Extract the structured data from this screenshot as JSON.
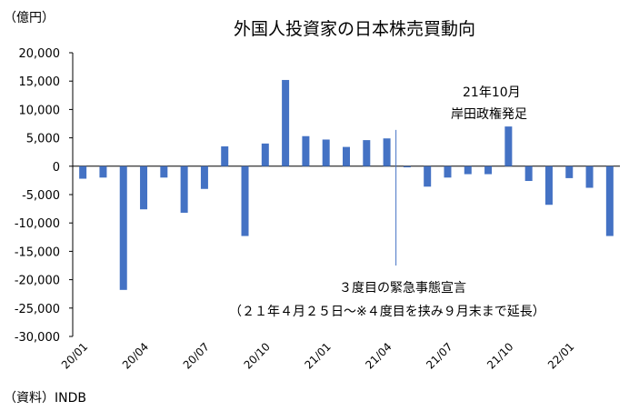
{
  "chart_data": {
    "type": "bar",
    "title": "外国人投資家の日本株売買動向",
    "unit_label": "（億円）",
    "source": "（資料）INDB",
    "ylim": [
      -30000,
      20000
    ],
    "y_ticks": [
      "20,000",
      "15,000",
      "10,000",
      "5,000",
      "0",
      "-5,000",
      "-10,000",
      "-15,000",
      "-20,000",
      "-25,000",
      "-30,000"
    ],
    "y_tick_values": [
      20000,
      15000,
      10000,
      5000,
      0,
      -5000,
      -10000,
      -15000,
      -20000,
      -25000,
      -30000
    ],
    "x_tick_labels": [
      {
        "label": "20/01",
        "index": 0
      },
      {
        "label": "20/04",
        "index": 3
      },
      {
        "label": "20/07",
        "index": 6
      },
      {
        "label": "20/10",
        "index": 9
      },
      {
        "label": "21/01",
        "index": 12
      },
      {
        "label": "21/04",
        "index": 15
      },
      {
        "label": "21/07",
        "index": 18
      },
      {
        "label": "21/10",
        "index": 21
      },
      {
        "label": "22/01",
        "index": 24
      }
    ],
    "categories": [
      "20/01",
      "20/02",
      "20/03",
      "20/04",
      "20/05",
      "20/06",
      "20/07",
      "20/08",
      "20/09",
      "20/10",
      "20/11",
      "20/12",
      "21/01",
      "21/02",
      "21/03",
      "21/04",
      "21/05",
      "21/06",
      "21/07",
      "21/08",
      "21/09",
      "21/10",
      "21/11",
      "21/12",
      "22/01",
      "22/02",
      "22/03"
    ],
    "values": [
      -2200,
      -2000,
      -21800,
      -7600,
      -2000,
      -8200,
      -4000,
      3500,
      -12300,
      4000,
      15200,
      5300,
      4700,
      3400,
      4600,
      4900,
      -200,
      -3600,
      -2000,
      -1400,
      -1400,
      7000,
      -2600,
      -6800,
      -2100,
      -3800,
      -12300
    ],
    "bar_color": "#4472c4",
    "annotations": {
      "emergency_title": "３度目の緊急事態宣言",
      "emergency_detail": "（２１年４月２５日～※４度目を挟み９月末まで延長）",
      "kishida_date": "21年10月",
      "kishida_label": "岸田政権発足"
    }
  }
}
